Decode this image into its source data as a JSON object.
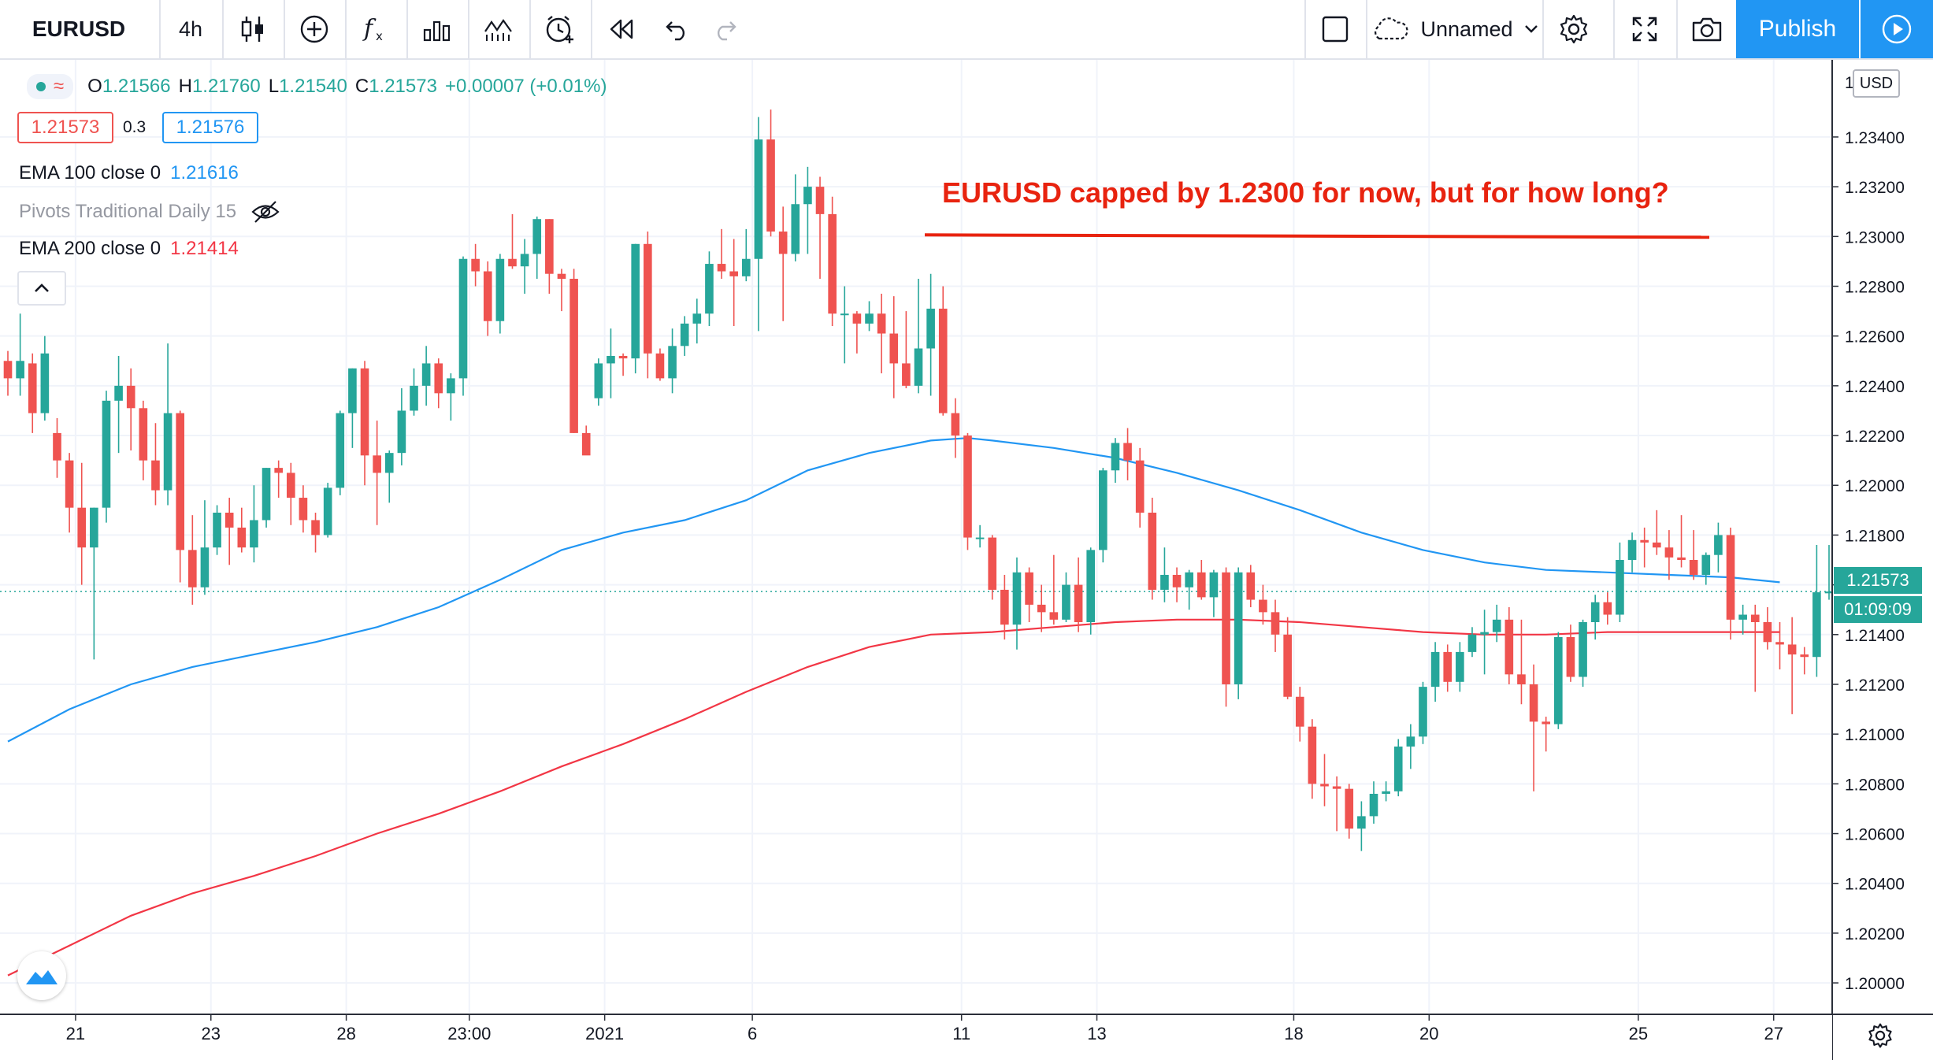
{
  "toolbar": {
    "symbol": "EURUSD",
    "interval": "4h",
    "layout_name": "Unnamed",
    "publish_label": "Publish",
    "accent_color": "#2196f3"
  },
  "legend": {
    "ohlc": {
      "open_label": "O",
      "open": "1.21566",
      "high_label": "H",
      "high": "1.21760",
      "low_label": "L",
      "low": "1.21540",
      "close_label": "C",
      "close": "1.21573",
      "change": "+0.00007 (+0.01%)"
    },
    "bid": "1.21573",
    "spread": "0.3",
    "ask": "1.21576",
    "indicators": [
      {
        "name": "EMA 100 close 0",
        "value": "1.21616",
        "color": "#2196f3"
      },
      {
        "name": "Pivots Traditional Daily 15",
        "value": "",
        "hidden": true
      },
      {
        "name": "EMA 200 close 0",
        "value": "1.21414",
        "color": "#f23645"
      }
    ]
  },
  "annotation": {
    "text": "EURUSD capped by 1.2300 for now, but for how long?",
    "level": 1.23,
    "color": "#e8230f"
  },
  "price_axis": {
    "currency": "USD",
    "current_price": "1.21573",
    "countdown": "01:09:09",
    "top_label_partial": "1"
  },
  "chart_data": {
    "type": "candlestick",
    "symbol": "EURUSD",
    "interval": "4h",
    "ylim": [
      1.1988,
      1.2371
    ],
    "y_ticks": [
      1.2,
      1.202,
      1.204,
      1.206,
      1.208,
      1.21,
      1.212,
      1.214,
      1.216,
      1.218,
      1.22,
      1.222,
      1.224,
      1.226,
      1.228,
      1.23,
      1.232,
      1.234
    ],
    "x_tick_labels": [
      {
        "label": "21",
        "bar": 5.5
      },
      {
        "label": "23",
        "bar": 16.5
      },
      {
        "label": "28",
        "bar": 27.5
      },
      {
        "label": "23:00",
        "bar": 37.5
      },
      {
        "label": "2021",
        "bar": 48.5
      },
      {
        "label": "6",
        "bar": 60.5
      },
      {
        "label": "11",
        "bar": 77.5
      },
      {
        "label": "13",
        "bar": 88.5
      },
      {
        "label": "18",
        "bar": 104.5
      },
      {
        "label": "20",
        "bar": 115.5
      },
      {
        "label": "25",
        "bar": 132.5
      },
      {
        "label": "27",
        "bar": 143.5
      }
    ],
    "bar_count_visible": 148,
    "candles": [
      [
        1.225,
        1.2254,
        1.2236,
        1.2243
      ],
      [
        1.2243,
        1.2269,
        1.2236,
        1.225
      ],
      [
        1.2249,
        1.2253,
        1.2221,
        1.2229
      ],
      [
        1.2229,
        1.226,
        1.2226,
        1.2253
      ],
      [
        1.2221,
        1.2227,
        1.2203,
        1.221
      ],
      [
        1.221,
        1.2213,
        1.2181,
        1.2191
      ],
      [
        1.2191,
        1.2209,
        1.216,
        1.2175
      ],
      [
        1.2175,
        1.2191,
        1.213,
        1.2191
      ],
      [
        1.2191,
        1.2238,
        1.2185,
        1.2234
      ],
      [
        1.2234,
        1.2252,
        1.2213,
        1.224
      ],
      [
        1.224,
        1.2247,
        1.2214,
        1.2231
      ],
      [
        1.2231,
        1.2234,
        1.2202,
        1.221
      ],
      [
        1.221,
        1.2225,
        1.2192,
        1.2198
      ],
      [
        1.2198,
        1.2257,
        1.2192,
        1.2229
      ],
      [
        1.2229,
        1.223,
        1.2161,
        1.2174
      ],
      [
        1.2174,
        1.2188,
        1.2152,
        1.2159
      ],
      [
        1.2159,
        1.2194,
        1.2156,
        1.2175
      ],
      [
        1.2175,
        1.2192,
        1.2172,
        1.2189
      ],
      [
        1.2189,
        1.2195,
        1.2168,
        1.2183
      ],
      [
        1.2183,
        1.2191,
        1.2173,
        1.2175
      ],
      [
        1.2175,
        1.22,
        1.2169,
        1.2186
      ],
      [
        1.2186,
        1.2207,
        1.2183,
        1.2207
      ],
      [
        1.2207,
        1.221,
        1.2195,
        1.2205
      ],
      [
        1.2205,
        1.2209,
        1.2184,
        1.2195
      ],
      [
        1.2195,
        1.22,
        1.2181,
        1.2186
      ],
      [
        1.2186,
        1.2189,
        1.2173,
        1.218
      ],
      [
        1.218,
        1.2201,
        1.2179,
        1.2199
      ],
      [
        1.2199,
        1.223,
        1.2196,
        1.2229
      ],
      [
        1.2229,
        1.2247,
        1.2215,
        1.2247
      ],
      [
        1.2247,
        1.225,
        1.22,
        1.2212
      ],
      [
        1.2212,
        1.2226,
        1.2184,
        1.2205
      ],
      [
        1.2205,
        1.2214,
        1.2193,
        1.2213
      ],
      [
        1.2213,
        1.2239,
        1.2208,
        1.223
      ],
      [
        1.223,
        1.2247,
        1.2228,
        1.224
      ],
      [
        1.224,
        1.2256,
        1.2232,
        1.2249
      ],
      [
        1.2249,
        1.2251,
        1.2231,
        1.2237
      ],
      [
        1.2237,
        1.2245,
        1.2226,
        1.2243
      ],
      [
        1.2243,
        1.2292,
        1.2236,
        1.2291
      ],
      [
        1.2291,
        1.2297,
        1.228,
        1.2286
      ],
      [
        1.2286,
        1.229,
        1.226,
        1.2266
      ],
      [
        1.2266,
        1.2293,
        1.2261,
        1.2291
      ],
      [
        1.2291,
        1.2309,
        1.2287,
        1.2288
      ],
      [
        1.2288,
        1.2299,
        1.2277,
        1.2293
      ],
      [
        1.2293,
        1.2308,
        1.2283,
        1.2307
      ],
      [
        1.2307,
        1.2307,
        1.2277,
        1.2285
      ],
      [
        1.2285,
        1.2287,
        1.227,
        1.2283
      ],
      [
        1.2283,
        1.2287,
        1.2221,
        1.2221
      ],
      [
        1.2221,
        1.2224,
        1.2213,
        1.2212
      ],
      [
        1.2235,
        1.2251,
        1.2232,
        1.2249
      ],
      [
        1.2249,
        1.2263,
        1.2235,
        1.2252
      ],
      [
        1.2252,
        1.2253,
        1.2244,
        1.2251
      ],
      [
        1.2251,
        1.2297,
        1.2245,
        1.2297
      ],
      [
        1.2297,
        1.2302,
        1.2243,
        1.2253
      ],
      [
        1.2253,
        1.2255,
        1.2242,
        1.2243
      ],
      [
        1.2243,
        1.2263,
        1.2237,
        1.2256
      ],
      [
        1.2256,
        1.2268,
        1.2252,
        1.2265
      ],
      [
        1.2265,
        1.2275,
        1.2257,
        1.2269
      ],
      [
        1.2269,
        1.2294,
        1.2264,
        1.2289
      ],
      [
        1.2289,
        1.2303,
        1.2283,
        1.2286
      ],
      [
        1.2286,
        1.2299,
        1.2264,
        1.2284
      ],
      [
        1.2284,
        1.2303,
        1.2282,
        1.2291
      ],
      [
        1.2291,
        1.2348,
        1.2262,
        1.2339
      ],
      [
        1.2339,
        1.2351,
        1.23,
        1.2302
      ],
      [
        1.2302,
        1.2312,
        1.2266,
        1.2293
      ],
      [
        1.2293,
        1.2325,
        1.229,
        1.2313
      ],
      [
        1.2313,
        1.2328,
        1.2293,
        1.232
      ],
      [
        1.232,
        1.2324,
        1.2283,
        1.2309
      ],
      [
        1.2309,
        1.2316,
        1.2264,
        1.2269
      ],
      [
        1.2269,
        1.228,
        1.2249,
        1.2269
      ],
      [
        1.2269,
        1.227,
        1.2253,
        1.2265
      ],
      [
        1.2265,
        1.2274,
        1.2262,
        1.2269
      ],
      [
        1.2269,
        1.2277,
        1.2245,
        1.2261
      ],
      [
        1.2261,
        1.2276,
        1.2235,
        1.2249
      ],
      [
        1.2249,
        1.227,
        1.2239,
        1.224
      ],
      [
        1.224,
        1.2283,
        1.2237,
        1.2255
      ],
      [
        1.2255,
        1.2285,
        1.2236,
        1.2271
      ],
      [
        1.2271,
        1.228,
        1.2228,
        1.2229
      ],
      [
        1.2229,
        1.2235,
        1.2211,
        1.222
      ],
      [
        1.222,
        1.2221,
        1.2174,
        1.2179
      ],
      [
        1.2179,
        1.2184,
        1.2175,
        1.2179
      ],
      [
        1.2179,
        1.218,
        1.2154,
        1.2158
      ],
      [
        1.2158,
        1.2164,
        1.2138,
        1.2144
      ],
      [
        1.2144,
        1.2171,
        1.2134,
        1.2165
      ],
      [
        1.2165,
        1.2167,
        1.2145,
        1.2152
      ],
      [
        1.2152,
        1.216,
        1.2141,
        1.2149
      ],
      [
        1.2149,
        1.2172,
        1.2144,
        1.2146
      ],
      [
        1.2146,
        1.2165,
        1.2145,
        1.216
      ],
      [
        1.216,
        1.2171,
        1.2141,
        1.2145
      ],
      [
        1.2145,
        1.2175,
        1.214,
        1.2174
      ],
      [
        1.2174,
        1.2207,
        1.2169,
        1.2206
      ],
      [
        1.2206,
        1.2219,
        1.2201,
        1.2217
      ],
      [
        1.2217,
        1.2223,
        1.2202,
        1.221
      ],
      [
        1.221,
        1.2215,
        1.2183,
        1.2189
      ],
      [
        1.2189,
        1.2195,
        1.2154,
        1.2158
      ],
      [
        1.2158,
        1.2175,
        1.2153,
        1.2164
      ],
      [
        1.2164,
        1.2167,
        1.2153,
        1.2159
      ],
      [
        1.2159,
        1.2166,
        1.215,
        1.2165
      ],
      [
        1.2165,
        1.217,
        1.2154,
        1.2155
      ],
      [
        1.2155,
        1.2166,
        1.2147,
        1.2165
      ],
      [
        1.2165,
        1.2167,
        1.2111,
        1.212
      ],
      [
        1.212,
        1.2167,
        1.2114,
        1.2165
      ],
      [
        1.2165,
        1.2168,
        1.2151,
        1.2154
      ],
      [
        1.2154,
        1.216,
        1.2144,
        1.2149
      ],
      [
        1.2149,
        1.2154,
        1.2133,
        1.214
      ],
      [
        1.214,
        1.2147,
        1.2114,
        1.2115
      ],
      [
        1.2115,
        1.2119,
        1.2097,
        1.2103
      ],
      [
        1.2103,
        1.2106,
        1.2074,
        1.208
      ],
      [
        1.208,
        1.2092,
        1.2071,
        1.2079
      ],
      [
        1.2079,
        1.2083,
        1.2061,
        1.2078
      ],
      [
        1.2078,
        1.208,
        1.2058,
        1.2062
      ],
      [
        1.2062,
        1.2073,
        1.2053,
        1.2067
      ],
      [
        1.2067,
        1.2081,
        1.2064,
        1.2076
      ],
      [
        1.2076,
        1.2081,
        1.2073,
        1.2077
      ],
      [
        1.2077,
        1.2098,
        1.2075,
        1.2095
      ],
      [
        1.2095,
        1.2104,
        1.2086,
        1.2099
      ],
      [
        1.2099,
        1.2121,
        1.2096,
        1.2119
      ],
      [
        1.2119,
        1.2137,
        1.2113,
        1.2133
      ],
      [
        1.2133,
        1.2136,
        1.2117,
        1.2121
      ],
      [
        1.2121,
        1.2137,
        1.2117,
        1.2133
      ],
      [
        1.2133,
        1.2143,
        1.2131,
        1.214
      ],
      [
        1.214,
        1.215,
        1.2124,
        1.2141
      ],
      [
        1.2141,
        1.2152,
        1.2137,
        1.2146
      ],
      [
        1.2146,
        1.2151,
        1.212,
        1.2124
      ],
      [
        1.2124,
        1.2146,
        1.2112,
        1.212
      ],
      [
        1.212,
        1.2128,
        1.2077,
        1.2105
      ],
      [
        1.2105,
        1.2107,
        1.2093,
        1.2104
      ],
      [
        1.2104,
        1.2141,
        1.2102,
        1.2139
      ],
      [
        1.2139,
        1.2144,
        1.2121,
        1.2123
      ],
      [
        1.2123,
        1.2146,
        1.2119,
        1.2145
      ],
      [
        1.2145,
        1.2156,
        1.2138,
        1.2153
      ],
      [
        1.2153,
        1.2157,
        1.2144,
        1.2148
      ],
      [
        1.2148,
        1.2177,
        1.2145,
        1.217
      ],
      [
        1.217,
        1.2181,
        1.2165,
        1.2178
      ],
      [
        1.2178,
        1.2183,
        1.2167,
        1.2177
      ],
      [
        1.2177,
        1.219,
        1.2172,
        1.2175
      ],
      [
        1.2175,
        1.2182,
        1.2162,
        1.2171
      ],
      [
        1.2171,
        1.2188,
        1.2167,
        1.217
      ],
      [
        1.217,
        1.2182,
        1.2162,
        1.2164
      ],
      [
        1.2164,
        1.2173,
        1.216,
        1.2172
      ],
      [
        1.2172,
        1.2185,
        1.2165,
        1.218
      ],
      [
        1.218,
        1.2183,
        1.2138,
        1.2146
      ],
      [
        1.2146,
        1.2152,
        1.214,
        1.2148
      ],
      [
        1.2148,
        1.2152,
        1.2117,
        1.2145
      ],
      [
        1.2145,
        1.2151,
        1.2134,
        1.2137
      ],
      [
        1.2137,
        1.2145,
        1.2126,
        1.2136
      ],
      [
        1.2136,
        1.2147,
        1.2108,
        1.2132
      ],
      [
        1.2132,
        1.2135,
        1.2124,
        1.2131
      ],
      [
        1.2131,
        1.2176,
        1.2123,
        1.2157
      ],
      [
        1.21566,
        1.2176,
        1.2154,
        1.21573
      ]
    ],
    "series": [
      {
        "name": "EMA 100 close 0",
        "color": "#2196f3",
        "points": [
          [
            0,
            1.2097
          ],
          [
            5,
            1.211
          ],
          [
            10,
            1.212
          ],
          [
            15,
            1.2127
          ],
          [
            20,
            1.2132
          ],
          [
            25,
            1.2137
          ],
          [
            30,
            1.2143
          ],
          [
            35,
            1.2151
          ],
          [
            40,
            1.2162
          ],
          [
            45,
            1.2174
          ],
          [
            50,
            1.2181
          ],
          [
            55,
            1.2186
          ],
          [
            60,
            1.2194
          ],
          [
            65,
            1.2206
          ],
          [
            70,
            1.2213
          ],
          [
            75,
            1.2218
          ],
          [
            78,
            1.2219
          ],
          [
            80,
            1.2218
          ],
          [
            85,
            1.2215
          ],
          [
            90,
            1.2211
          ],
          [
            95,
            1.2205
          ],
          [
            100,
            1.2198
          ],
          [
            105,
            1.219
          ],
          [
            110,
            1.2181
          ],
          [
            115,
            1.2174
          ],
          [
            120,
            1.2169
          ],
          [
            125,
            1.2166
          ],
          [
            130,
            1.2165
          ],
          [
            135,
            1.2164
          ],
          [
            140,
            1.2163
          ],
          [
            144,
            1.2161
          ]
        ]
      },
      {
        "name": "EMA 200 close 0",
        "color": "#f23645",
        "points": [
          [
            0,
            1.2003
          ],
          [
            5,
            1.2015
          ],
          [
            10,
            1.2027
          ],
          [
            15,
            1.2036
          ],
          [
            20,
            1.2043
          ],
          [
            25,
            1.2051
          ],
          [
            30,
            1.206
          ],
          [
            35,
            1.2068
          ],
          [
            40,
            1.2077
          ],
          [
            45,
            1.2087
          ],
          [
            50,
            1.2096
          ],
          [
            55,
            1.2106
          ],
          [
            60,
            1.2117
          ],
          [
            65,
            1.2127
          ],
          [
            70,
            1.2135
          ],
          [
            75,
            1.214
          ],
          [
            80,
            1.2141
          ],
          [
            85,
            1.2143
          ],
          [
            90,
            1.2145
          ],
          [
            95,
            1.2146
          ],
          [
            100,
            1.2146
          ],
          [
            105,
            1.2145
          ],
          [
            110,
            1.2143
          ],
          [
            115,
            1.2141
          ],
          [
            120,
            1.214
          ],
          [
            125,
            1.214
          ],
          [
            130,
            1.2141
          ],
          [
            135,
            1.2141
          ],
          [
            140,
            1.2141
          ],
          [
            144,
            1.2141
          ]
        ]
      }
    ],
    "colors": {
      "up": "#26a69a",
      "down": "#ef5350"
    },
    "grid": true
  }
}
